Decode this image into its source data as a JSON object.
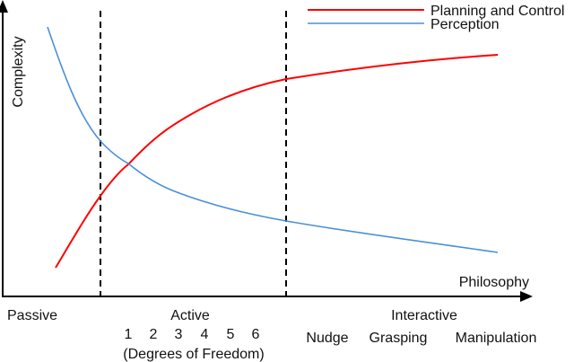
{
  "colors": {
    "planning_control": "#ff0000",
    "perception": "#4a90d9",
    "axes": "#000000"
  },
  "legend": [
    {
      "label": "Planning and Control",
      "color": "#ff0000"
    },
    {
      "label": "Perception",
      "color": "#4a90d9"
    }
  ],
  "axes": {
    "y_label": "Complexity",
    "x_label": "Philosophy"
  },
  "regions": {
    "passive": {
      "label": "Passive"
    },
    "active": {
      "label": "Active",
      "dof_values": [
        "1",
        "2",
        "3",
        "4",
        "5",
        "6"
      ],
      "dof_caption": "(Degrees of Freedom)"
    },
    "interactive": {
      "label": "Interactive",
      "sublabels": [
        "Nudge",
        "Grasping",
        "Manipulation"
      ]
    }
  }
}
